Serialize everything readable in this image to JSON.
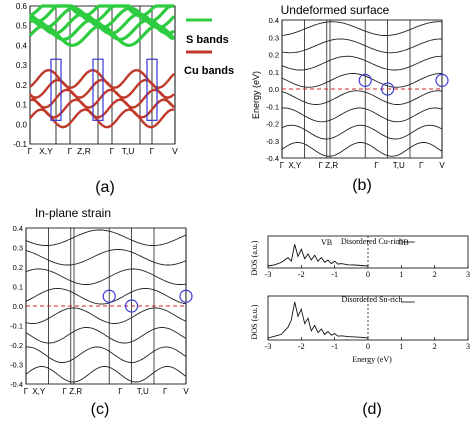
{
  "figure": {
    "panels": [
      {
        "id": "a",
        "caption": "(a)",
        "legend": [
          {
            "label": "S bands",
            "color": "#2ecc40"
          },
          {
            "label": "Cu bands",
            "color": "#c0392b"
          }
        ],
        "chart_data": {
          "type": "line",
          "title": "",
          "xlabel": "",
          "ylabel": "",
          "ylim": [
            -0.1,
            0.6
          ],
          "y_ticks": [
            "0.6",
            "0.5",
            "0.4",
            "0.3",
            "0.2",
            "0.1",
            "0.0",
            "-0.1"
          ],
          "x_ticks": [
            "Γ",
            "X,Y",
            "Γ",
            "Z,R",
            "Γ",
            "T,U",
            "Γ",
            "V"
          ],
          "series": [
            {
              "name": "S bands",
              "values": []
            },
            {
              "name": "Cu bands",
              "values": []
            }
          ]
        }
      },
      {
        "id": "b",
        "caption": "(b)",
        "chart_data": {
          "type": "line",
          "title": "Undeformed surface",
          "xlabel": "",
          "ylabel": "Energy (eV)",
          "ylim": [
            -0.4,
            0.4
          ],
          "y_ticks": [
            "0.4",
            "0.3",
            "0.2",
            "0.1",
            "0.0",
            "-0.1",
            "-0.2",
            "-0.3",
            "-0.4"
          ],
          "x_ticks": [
            "Γ",
            "X,Y",
            "Γ Z,R",
            "Γ",
            "T,U",
            "Γ",
            "V"
          ]
        }
      },
      {
        "id": "c",
        "caption": "(c)",
        "chart_data": {
          "type": "line",
          "title": "In-plane strain",
          "xlabel": "",
          "ylabel": "",
          "ylim": [
            -0.4,
            0.4
          ],
          "y_ticks": [
            "0.4",
            "0.3",
            "0.2",
            "0.1",
            "0.0",
            "-0.1",
            "-0.2",
            "-0.3",
            "-0.4"
          ],
          "x_ticks": [
            "Γ",
            "X,Y",
            "Γ Z,R",
            "Γ",
            "T,U",
            "Γ",
            "V"
          ]
        }
      },
      {
        "id": "d",
        "caption": "(d)",
        "chart_data": [
          {
            "type": "line",
            "ylabel": "DOS (a.u.)",
            "legend": "Disordered Cu-rich",
            "annotations": [
              "VB",
              "CB"
            ],
            "x_ticks": [
              "-3",
              "-2",
              "-1",
              "0",
              "1",
              "2",
              "3"
            ],
            "xlim": [
              -3,
              3
            ],
            "x": [
              -3.0,
              -2.8,
              -2.6,
              -2.4,
              -2.3,
              -2.2,
              -2.1,
              -2.0,
              -1.9,
              -1.8,
              -1.7,
              -1.6,
              -1.5,
              -1.4,
              -1.3,
              -1.2,
              -1.1,
              -1.0,
              -0.9,
              -0.8,
              -0.6,
              -0.4,
              -0.2,
              0.0
            ],
            "y": [
              0.0,
              0.05,
              0.15,
              0.35,
              0.2,
              0.9,
              0.4,
              0.7,
              0.3,
              0.5,
              0.25,
              0.45,
              0.2,
              0.35,
              0.15,
              0.25,
              0.1,
              0.2,
              0.08,
              0.1,
              0.05,
              0.04,
              0.02,
              0.0
            ]
          },
          {
            "type": "line",
            "ylabel": "DOS (a.u.)",
            "xlabel": "Energy (eV)",
            "legend": "Disordered Sn-rich",
            "x_ticks": [
              "-3",
              "-2",
              "-1",
              "0",
              "1",
              "2",
              "3"
            ],
            "xlim": [
              -3,
              3
            ],
            "x": [
              -3.0,
              -2.8,
              -2.6,
              -2.4,
              -2.3,
              -2.2,
              -2.1,
              -2.0,
              -1.9,
              -1.8,
              -1.7,
              -1.6,
              -1.5,
              -1.4,
              -1.3,
              -1.2,
              -1.1,
              -1.0,
              -0.9,
              -0.8,
              -0.6,
              -0.4,
              -0.2,
              0.0
            ],
            "y": [
              0.0,
              0.05,
              0.1,
              0.3,
              0.5,
              1.0,
              0.6,
              0.8,
              0.4,
              0.55,
              0.2,
              0.35,
              0.15,
              0.25,
              0.1,
              0.18,
              0.08,
              0.12,
              0.05,
              0.06,
              0.04,
              0.03,
              0.02,
              0.0
            ]
          }
        ]
      }
    ]
  }
}
